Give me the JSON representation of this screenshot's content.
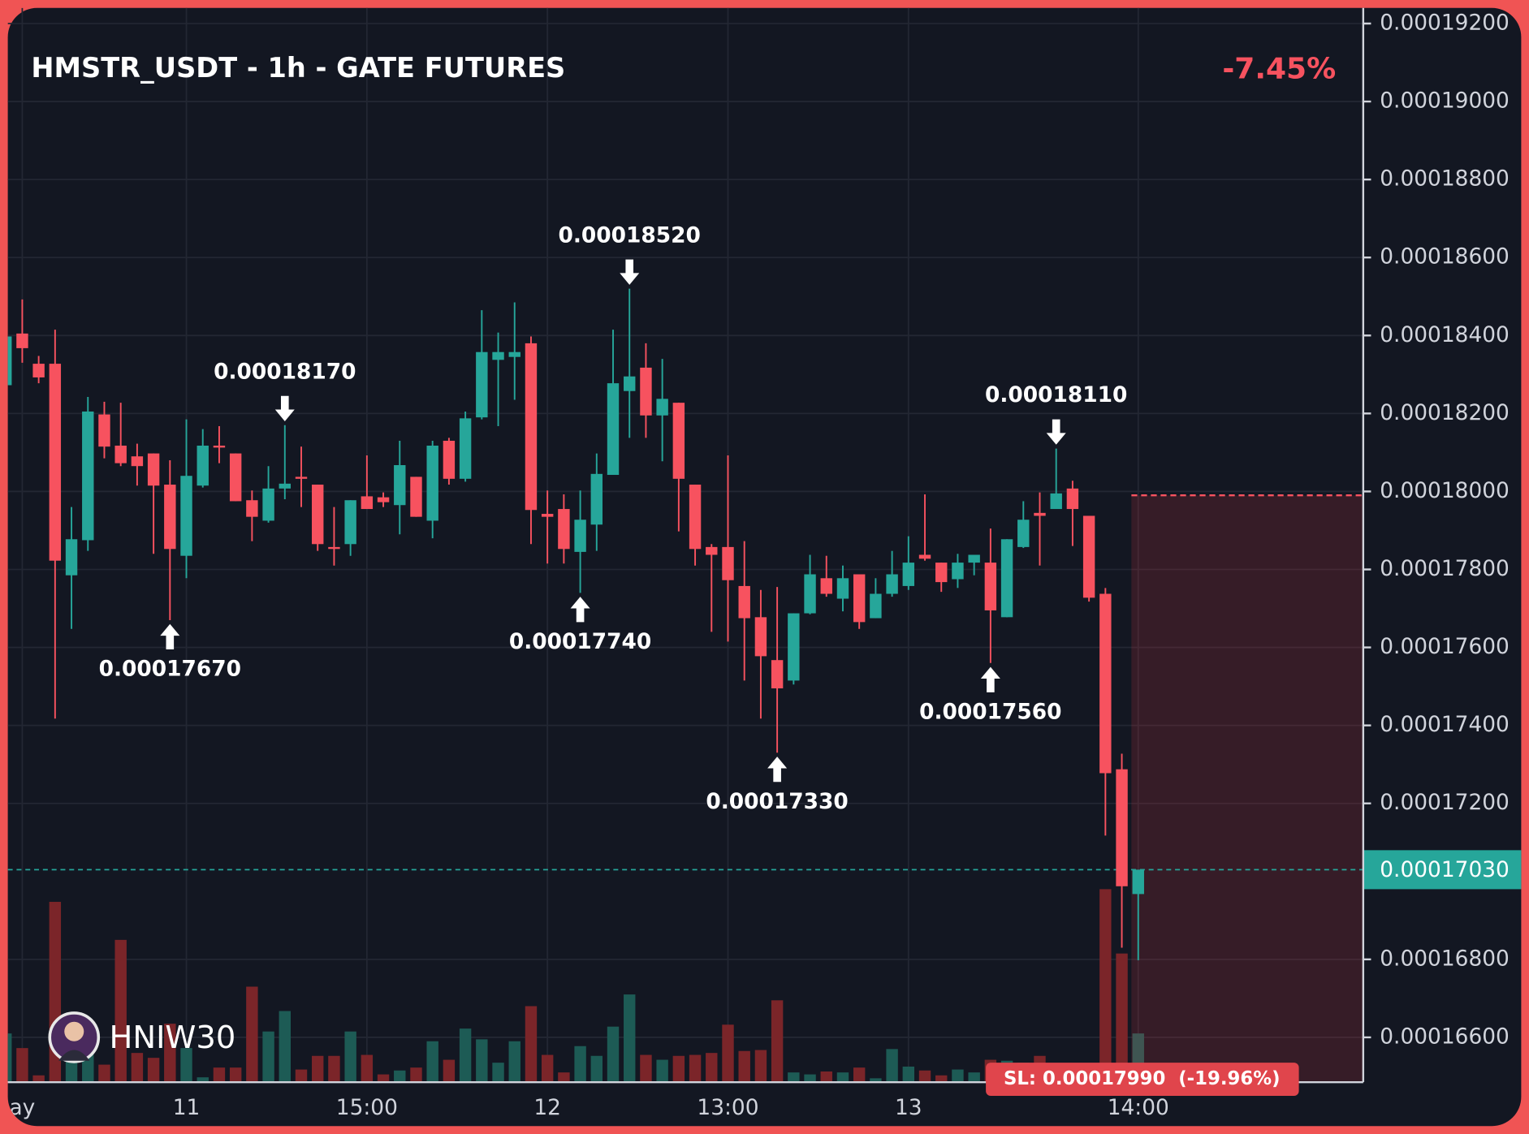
{
  "chart_data": {
    "type": "candlestick",
    "title": "HMSTR_USDT - 1h - GATE FUTURES",
    "change": "-7.45%",
    "watermark": "HNIW30",
    "up_color": "#26a69a",
    "down_color": "#f7525f",
    "volume_up_color": "#1d5b55",
    "volume_down_color": "#7b2529",
    "categories": [
      null,
      "ay",
      null,
      null,
      null,
      null,
      null,
      null,
      null,
      null,
      null,
      "11",
      null,
      null,
      null,
      null,
      null,
      null,
      null,
      null,
      null,
      null,
      "15:00",
      null,
      null,
      null,
      null,
      null,
      null,
      null,
      null,
      null,
      null,
      "12",
      null,
      null,
      null,
      null,
      null,
      null,
      null,
      null,
      null,
      null,
      "13:00",
      null,
      null,
      null,
      null,
      null,
      null,
      null,
      null,
      null,
      null,
      "13",
      null,
      null,
      null,
      null,
      null,
      null,
      null,
      null,
      null,
      null,
      null,
      null,
      null,
      "14:00"
    ],
    "open": [
      0.000182725,
      0.00018405,
      0.000183275,
      0.000183275,
      0.00017785,
      0.00017875,
      0.000181975,
      0.000181175,
      0.0001809,
      0.000180975,
      0.000180175,
      0.00017835,
      0.00018015,
      0.000181175,
      0.000180975,
      0.000179775,
      0.00017925,
      0.000180075,
      0.000180375,
      0.000180175,
      0.000178575,
      0.00017865,
      0.000179875,
      0.00017985,
      0.00017965,
      0.000180375,
      0.00017925,
      0.0001813,
      0.000180325,
      0.0001819,
      0.000183375,
      0.00018345,
      0.0001838,
      0.000179425,
      0.00017955,
      0.00017845,
      0.00017915,
      0.000180425,
      0.000182575,
      0.000183175,
      0.00018195,
      0.000182275,
      0.000180175,
      0.000178575,
      0.000178575,
      0.000177575,
      0.000176775,
      0.000175675,
      0.00017515,
      0.000176875,
      0.000177775,
      0.00017725,
      0.000177875,
      0.00017675,
      0.000177375,
      0.000177575,
      0.000178375,
      0.000178175,
      0.00017775,
      0.000178175,
      0.000178175,
      0.000176775,
      0.000178575,
      0.00017945,
      0.00017955,
      0.000180075,
      0.000179375,
      0.000177375,
      0.000172875,
      0.000169675
    ],
    "high": [
      0.000183975,
      0.000184925,
      0.000183475,
      0.00018415,
      0.0001796,
      0.000182425,
      0.0001823,
      0.000182275,
      0.000181225,
      0.000180975,
      0.0001808,
      0.00018185,
      0.0001816,
      0.000181675,
      0.000180975,
      0.000180025,
      0.00018065,
      0.0001817,
      0.00018115,
      0.000180175,
      0.0001796,
      0.000179775,
      0.000180925,
      0.000179975,
      0.0001813,
      0.000180375,
      0.0001813,
      0.000181375,
      0.00018205,
      0.00018465,
      0.000184075,
      0.00018485,
      0.000183975,
      0.000180025,
      0.000179925,
      0.000180025,
      0.000180975,
      0.00018415,
      0.0001852,
      0.0001838,
      0.0001834,
      0.000182275,
      0.000180175,
      0.00017865,
      0.000180925,
      0.000178725,
      0.000177475,
      0.00017755,
      0.000176875,
      0.000178375,
      0.00017835,
      0.0001781,
      0.000177875,
      0.000177775,
      0.000178475,
      0.00017885,
      0.000179925,
      0.000178175,
      0.0001784,
      0.000178375,
      0.00017905,
      0.000178775,
      0.00017975,
      0.000179975,
      0.0001811,
      0.000180275,
      0.000179375,
      0.000177525,
      0.000173275,
      0.0001703
    ],
    "low": [
      0.000182725,
      0.0001833,
      0.000182775,
      0.000174175,
      0.000176475,
      0.000178475,
      0.00018085,
      0.00018065,
      0.00018015,
      0.0001784,
      0.0001767,
      0.000177775,
      0.0001801,
      0.000180725,
      0.00017975,
      0.000178725,
      0.0001792,
      0.0001798,
      0.0001796,
      0.000178475,
      0.0001781,
      0.00017835,
      0.00017955,
      0.0001796,
      0.0001789,
      0.00017935,
      0.0001788,
      0.000180175,
      0.00018025,
      0.00018185,
      0.000181675,
      0.00018235,
      0.00017865,
      0.00017815,
      0.00017815,
      0.0001774,
      0.000178475,
      0.000180425,
      0.000181375,
      0.000181375,
      0.000180775,
      0.000178975,
      0.0001781,
      0.0001764,
      0.00017615,
      0.00017515,
      0.000174175,
      0.0001733,
      0.00017505,
      0.00017685,
      0.0001773,
      0.000176925,
      0.000176475,
      0.00017675,
      0.0001773,
      0.000177475,
      0.000178225,
      0.000177425,
      0.000177525,
      0.00017785,
      0.0001756,
      0.000176775,
      0.00017855,
      0.0001781,
      0.00017955,
      0.0001786,
      0.000177175,
      0.000171175,
      0.0001683,
      0.000167975
    ],
    "close": [
      0.000183975,
      0.000183675,
      0.000182925,
      0.000178225,
      0.000178775,
      0.00018205,
      0.00018115,
      0.000180725,
      0.00018065,
      0.00018015,
      0.000178525,
      0.0001804,
      0.000181175,
      0.000181125,
      0.00017975,
      0.00017935,
      0.000180075,
      0.0001802,
      0.000180325,
      0.00017865,
      0.000178525,
      0.000179775,
      0.00017955,
      0.000179725,
      0.000180675,
      0.00017935,
      0.000181175,
      0.000180325,
      0.000181875,
      0.000183575,
      0.000183575,
      0.000183575,
      0.000179525,
      0.00017935,
      0.000178525,
      0.000179275,
      0.00018045,
      0.000182775,
      0.00018295,
      0.00018195,
      0.000182375,
      0.000180325,
      0.000178525,
      0.000178375,
      0.000177725,
      0.00017675,
      0.000175775,
      0.00017495,
      0.000176875,
      0.000177875,
      0.000177375,
      0.000177775,
      0.00017665,
      0.000177375,
      0.000177875,
      0.000178175,
      0.000178275,
      0.000177675,
      0.000178175,
      0.000178375,
      0.00017695,
      0.000178775,
      0.000179275,
      0.000179375,
      0.00017995,
      0.00017955,
      0.000177275,
      0.000172775,
      0.000169875,
      0.0001703
    ],
    "volume": [
      50,
      35,
      7,
      185,
      30,
      35,
      18,
      146,
      30,
      25,
      60,
      35,
      5,
      15,
      15,
      98,
      52,
      73,
      13,
      27,
      27,
      52,
      28,
      8,
      12,
      15,
      42,
      23,
      55,
      44,
      20,
      42,
      78,
      28,
      10,
      37,
      27,
      57,
      90,
      28,
      23,
      27,
      28,
      30,
      59,
      32,
      33,
      84,
      10,
      8,
      11,
      10,
      15,
      4,
      34,
      16,
      12,
      7,
      13,
      10,
      23,
      22,
      20,
      27,
      12,
      10,
      5,
      198,
      132,
      50
    ],
    "ylim": [
      0.00016485,
      0.0001924
    ],
    "yticks": [
      {
        "value": 0.000166,
        "label": "0.00016600"
      },
      {
        "value": 0.000168,
        "label": "0.00016800"
      },
      {
        "value": 0.000172,
        "label": "0.00017200"
      },
      {
        "value": 0.000174,
        "label": "0.00017400"
      },
      {
        "value": 0.000176,
        "label": "0.00017600"
      },
      {
        "value": 0.000178,
        "label": "0.00017800"
      },
      {
        "value": 0.00018,
        "label": "0.00018000"
      },
      {
        "value": 0.000182,
        "label": "0.00018200"
      },
      {
        "value": 0.000184,
        "label": "0.00018400"
      },
      {
        "value": 0.000186,
        "label": "0.00018600"
      },
      {
        "value": 0.000188,
        "label": "0.00018800"
      },
      {
        "value": 0.00019,
        "label": "0.00019000"
      },
      {
        "value": 0.000192,
        "label": "0.00019200"
      }
    ],
    "last_price": {
      "value": 0.0001703,
      "label": "0.00017030"
    },
    "stop_loss": {
      "value": 0.0001799,
      "label": "SL: 0.00017990  (-19.96%)"
    },
    "annotations": [
      {
        "value": 0.0001767,
        "label": "0.00017670"
      },
      {
        "value": 0.0001817,
        "label": "0.00018170"
      },
      {
        "value": 0.0001774,
        "label": "0.00017740"
      },
      {
        "value": 0.0001852,
        "label": "0.00018520"
      },
      {
        "value": 0.0001733,
        "label": "0.00017330"
      },
      {
        "value": 0.0001756,
        "label": "0.00017560"
      },
      {
        "value": 0.0001811,
        "label": "0.00018110"
      }
    ]
  }
}
